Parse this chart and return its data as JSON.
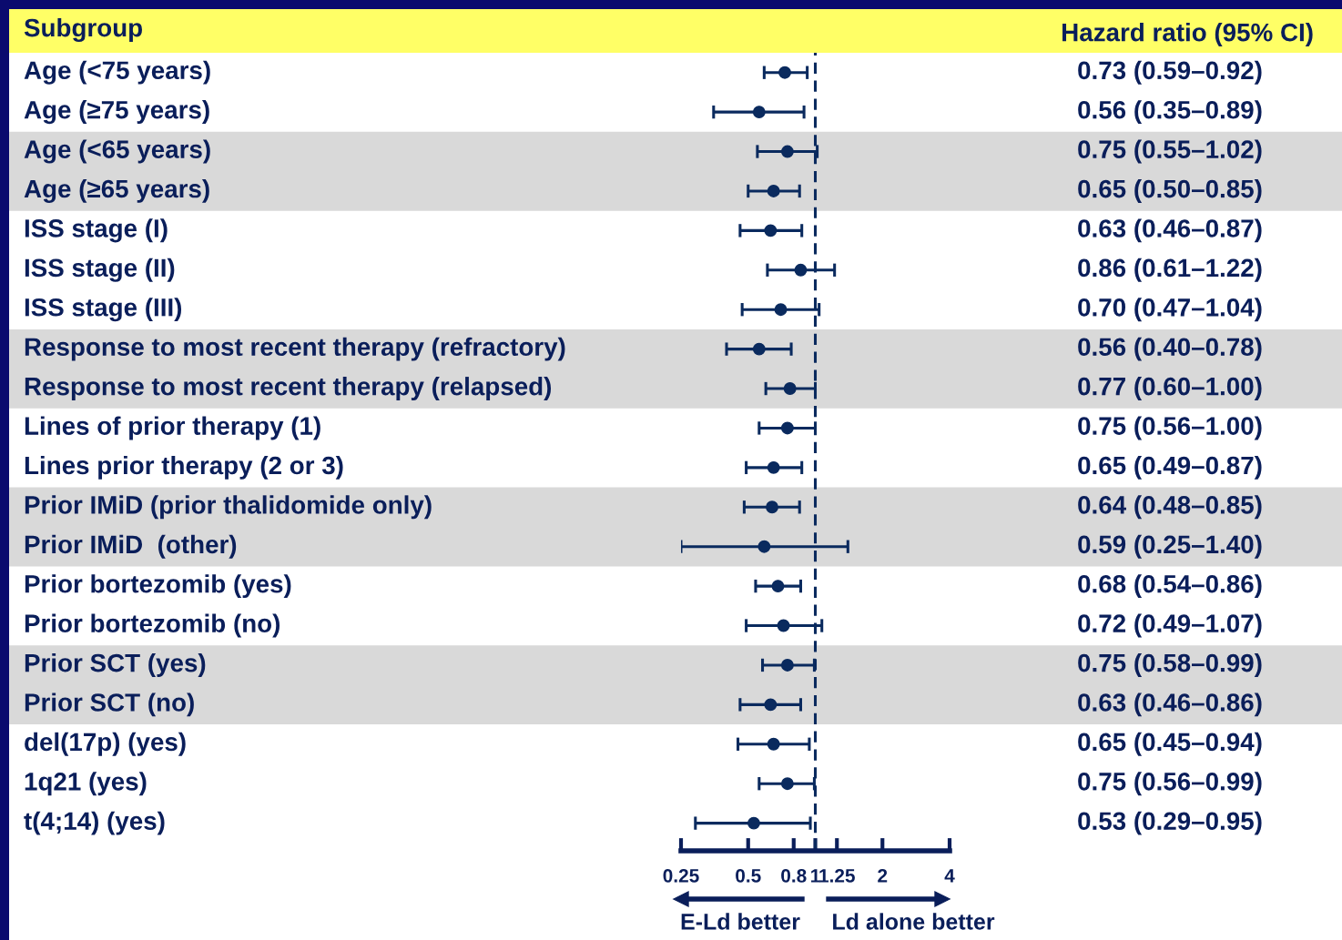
{
  "chart_data": {
    "type": "scatter",
    "orientation": "horizontal",
    "ylabel": "Subgroup",
    "categories": [
      "Age (<75 years)",
      "Age (≥75 years)",
      "Age (<65 years)",
      "Age (≥65 years)",
      "ISS stage (I)",
      "ISS stage (II)",
      "ISS stage (III)",
      "Response to most recent therapy (refractory)",
      "Response to most recent therapy (relapsed)",
      "Lines of prior therapy (1)",
      "Lines prior therapy (2 or 3)",
      "Prior IMiD (prior thalidomide only)",
      "Prior IMiD  (other)",
      "Prior bortezomib (yes)",
      "Prior bortezomib (no)",
      "Prior SCT (yes)",
      "Prior SCT (no)",
      "del(17p) (yes)",
      "1q21 (yes)",
      "t(4;14) (yes)"
    ],
    "values": [
      0.73,
      0.56,
      0.75,
      0.65,
      0.63,
      0.86,
      0.7,
      0.56,
      0.77,
      0.75,
      0.65,
      0.64,
      0.59,
      0.68,
      0.72,
      0.75,
      0.63,
      0.65,
      0.75,
      0.53
    ],
    "errors": [
      [
        0.59,
        0.92
      ],
      [
        0.35,
        0.89
      ],
      [
        0.55,
        1.02
      ],
      [
        0.5,
        0.85
      ],
      [
        0.46,
        0.87
      ],
      [
        0.61,
        1.22
      ],
      [
        0.47,
        1.04
      ],
      [
        0.4,
        0.78
      ],
      [
        0.6,
        1.0
      ],
      [
        0.56,
        1.0
      ],
      [
        0.49,
        0.87
      ],
      [
        0.48,
        0.85
      ],
      [
        0.25,
        1.4
      ],
      [
        0.54,
        0.86
      ],
      [
        0.49,
        1.07
      ],
      [
        0.58,
        0.99
      ],
      [
        0.46,
        0.86
      ],
      [
        0.45,
        0.94
      ],
      [
        0.56,
        0.99
      ],
      [
        0.29,
        0.95
      ]
    ],
    "value_labels": [
      "0.73 (0.59–0.92)",
      "0.56 (0.35–0.89)",
      "0.75 (0.55–1.02)",
      "0.65 (0.50–0.85)",
      "0.63 (0.46–0.87)",
      "0.86 (0.61–1.22)",
      "0.70 (0.47–1.04)",
      "0.56 (0.40–0.78)",
      "0.77 (0.60–1.00)",
      "0.75 (0.56–1.00)",
      "0.65 (0.49–0.87)",
      "0.64 (0.48–0.85)",
      "0.59 (0.25–1.40)",
      "0.68 (0.54–0.86)",
      "0.72 (0.49–1.07)",
      "0.75 (0.58–0.99)",
      "0.63 (0.46–0.86)",
      "0.65 (0.45–0.94)",
      "0.75 (0.56–0.99)",
      "0.53 (0.29–0.95)"
    ],
    "color": "#0a2a5e",
    "marker": "circle",
    "log": "x",
    "xlim": [
      0.25,
      4
    ],
    "xticks": [
      0.25,
      0.5,
      0.8,
      1,
      1.25,
      2,
      4
    ],
    "ref_lines": [
      {
        "axis": "x",
        "value": 1,
        "line_style": "dashed",
        "color": "#0a2a5e"
      }
    ],
    "bands": [
      {
        "axis": "y",
        "from": "Age (<65 years)",
        "to": "Age (≥65 years)",
        "color": "#d9d9d9"
      },
      {
        "axis": "y",
        "from": "Response to most recent therapy (refractory)",
        "to": "Response to most recent therapy (relapsed)",
        "color": "#d9d9d9"
      },
      {
        "axis": "y",
        "from": "Prior IMiD (prior thalidomide only)",
        "to": "Prior IMiD  (other)",
        "color": "#d9d9d9"
      },
      {
        "axis": "y",
        "from": "Prior SCT (yes)",
        "to": "Prior SCT (no)",
        "color": "#d9d9d9"
      }
    ],
    "annotations": [
      "Hazard ratio (95% CI)",
      "E-Ld better",
      "Ld alone better"
    ]
  }
}
